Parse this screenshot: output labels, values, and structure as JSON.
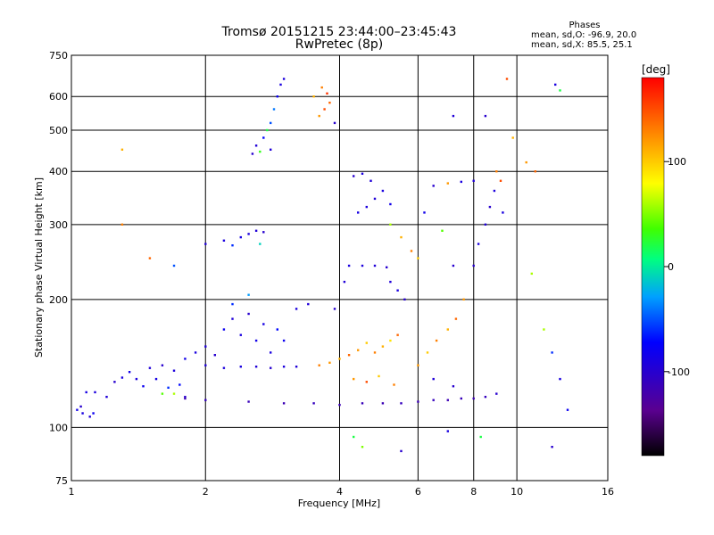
{
  "chart_data": {
    "type": "scatter",
    "title": "Tromsø 20151215 23:44:00–23:45:43",
    "subtitle": "RwPretec (8p)",
    "stats": {
      "heading": "Phases",
      "line1": "mean, sd,O: -96.9, 20.0",
      "line2": "mean, sd,X: 85.5, 25.1"
    },
    "xlabel": "Frequency [MHz]",
    "ylabel": "Stationary phase Virtual Height [km]",
    "x_scale": "log",
    "y_scale": "log",
    "xlim": [
      1,
      16
    ],
    "ylim": [
      75,
      750
    ],
    "x_ticks": [
      1,
      2,
      4,
      6,
      8,
      10,
      16
    ],
    "x_tick_labels": [
      "1",
      "2",
      "4",
      "6",
      "8",
      "10",
      "16"
    ],
    "x_grid": [
      2,
      4,
      6,
      8,
      10
    ],
    "y_ticks": [
      75,
      100,
      200,
      300,
      400,
      500,
      600,
      750
    ],
    "y_tick_labels": [
      "75",
      "100",
      "200",
      "300",
      "400",
      "500",
      "600",
      "750"
    ],
    "y_grid": [
      100,
      200,
      300,
      400,
      500,
      600
    ],
    "grid": true,
    "colorbar": {
      "label": "[deg]",
      "range": [
        -180,
        180
      ],
      "ticks": [
        100,
        0,
        -100
      ],
      "tick_labels": [
        "100",
        "0",
        "-100"
      ],
      "colormap": "black-purple-blue-cyan-green-yellow-orange-red"
    },
    "series": [
      {
        "points": [
          [
            1.03,
            110,
            -85
          ],
          [
            1.06,
            108,
            -90
          ],
          [
            1.1,
            106,
            -95
          ],
          [
            1.12,
            108,
            -80
          ],
          [
            1.05,
            112,
            -100
          ],
          [
            1.08,
            121,
            -88
          ],
          [
            1.13,
            121,
            -92
          ],
          [
            1.2,
            118,
            -95
          ],
          [
            1.25,
            128,
            -100
          ],
          [
            1.3,
            131,
            -90
          ],
          [
            1.35,
            135,
            -85
          ],
          [
            1.4,
            130,
            -92
          ],
          [
            1.45,
            125,
            -80
          ],
          [
            1.5,
            138,
            -95
          ],
          [
            1.55,
            130,
            -88
          ],
          [
            1.6,
            140,
            -100
          ],
          [
            1.7,
            136,
            -92
          ],
          [
            1.8,
            145,
            -85
          ],
          [
            1.9,
            150,
            -90
          ],
          [
            2.0,
            155,
            -95
          ],
          [
            1.65,
            124,
            -60
          ],
          [
            1.75,
            126,
            -70
          ],
          [
            1.6,
            120,
            40
          ],
          [
            1.7,
            120,
            60
          ],
          [
            1.8,
            118,
            -100
          ],
          [
            2.2,
            170,
            -80
          ],
          [
            2.3,
            180,
            -95
          ],
          [
            2.4,
            165,
            -90
          ],
          [
            2.5,
            185,
            -100
          ],
          [
            2.6,
            160,
            -85
          ],
          [
            2.7,
            175,
            -88
          ],
          [
            2.8,
            150,
            -90
          ],
          [
            2.1,
            148,
            -100
          ],
          [
            2.9,
            170,
            -70
          ],
          [
            3.0,
            160,
            -80
          ],
          [
            3.2,
            190,
            -92
          ],
          [
            3.4,
            195,
            -95
          ],
          [
            2.3,
            195,
            -60
          ],
          [
            2.5,
            205,
            -30
          ],
          [
            2.0,
            140,
            -95
          ],
          [
            2.2,
            138,
            -92
          ],
          [
            2.4,
            139,
            -90
          ],
          [
            2.6,
            139,
            -95
          ],
          [
            2.8,
            138,
            -100
          ],
          [
            3.0,
            139,
            -92
          ],
          [
            3.2,
            139,
            -95
          ],
          [
            2.0,
            270,
            -95
          ],
          [
            2.2,
            275,
            -90
          ],
          [
            2.4,
            280,
            -88
          ],
          [
            2.5,
            285,
            -92
          ],
          [
            2.6,
            290,
            -95
          ],
          [
            2.7,
            288,
            -100
          ],
          [
            2.3,
            268,
            -60
          ],
          [
            2.65,
            270,
            -10
          ],
          [
            2.55,
            440,
            -100
          ],
          [
            2.6,
            460,
            -95
          ],
          [
            2.7,
            480,
            -70
          ],
          [
            2.8,
            520,
            -50
          ],
          [
            2.85,
            560,
            -40
          ],
          [
            2.75,
            500,
            20
          ],
          [
            2.9,
            600,
            -80
          ],
          [
            2.95,
            640,
            -90
          ],
          [
            3.0,
            660,
            -92
          ],
          [
            2.65,
            445,
            30
          ],
          [
            2.8,
            450,
            -95
          ],
          [
            3.6,
            540,
            120
          ],
          [
            3.7,
            560,
            150
          ],
          [
            3.8,
            580,
            140
          ],
          [
            3.5,
            600,
            110
          ],
          [
            3.9,
            520,
            -100
          ],
          [
            3.65,
            630,
            130
          ],
          [
            3.75,
            610,
            160
          ],
          [
            1.8,
            117,
            -115
          ],
          [
            2.0,
            116,
            -110
          ],
          [
            2.5,
            115,
            -112
          ],
          [
            3.0,
            114,
            -115
          ],
          [
            3.5,
            114,
            -110
          ],
          [
            4.0,
            113,
            -115
          ],
          [
            4.5,
            114,
            -112
          ],
          [
            5.0,
            114,
            -115
          ],
          [
            5.5,
            114,
            -110
          ],
          [
            6.0,
            115,
            -115
          ],
          [
            6.5,
            116,
            -110
          ],
          [
            7.0,
            116,
            -115
          ],
          [
            7.5,
            117,
            -112
          ],
          [
            8.0,
            117,
            -115
          ],
          [
            8.5,
            118,
            -110
          ],
          [
            9.0,
            120,
            -100
          ],
          [
            3.6,
            140,
            130
          ],
          [
            3.8,
            142,
            120
          ],
          [
            4.0,
            145,
            110
          ],
          [
            4.2,
            148,
            140
          ],
          [
            4.4,
            152,
            120
          ],
          [
            4.6,
            158,
            100
          ],
          [
            4.8,
            150,
            130
          ],
          [
            5.0,
            155,
            110
          ],
          [
            5.2,
            160,
            90
          ],
          [
            5.4,
            165,
            140
          ],
          [
            4.3,
            130,
            120
          ],
          [
            4.6,
            128,
            150
          ],
          [
            4.9,
            132,
            100
          ],
          [
            5.3,
            126,
            130
          ],
          [
            3.9,
            190,
            -100
          ],
          [
            4.1,
            220,
            -95
          ],
          [
            4.2,
            240,
            -90
          ],
          [
            4.5,
            240,
            -92
          ],
          [
            4.8,
            240,
            -95
          ],
          [
            5.1,
            238,
            -100
          ],
          [
            4.4,
            320,
            -88
          ],
          [
            4.6,
            330,
            -92
          ],
          [
            4.8,
            345,
            -95
          ],
          [
            5.0,
            360,
            -90
          ],
          [
            5.2,
            335,
            -85
          ],
          [
            4.3,
            390,
            -100
          ],
          [
            4.5,
            395,
            -92
          ],
          [
            4.7,
            380,
            -95
          ],
          [
            5.2,
            300,
            60
          ],
          [
            5.5,
            280,
            110
          ],
          [
            5.8,
            260,
            130
          ],
          [
            6.0,
            250,
            100
          ],
          [
            5.6,
            200,
            -100
          ],
          [
            5.4,
            210,
            -90
          ],
          [
            5.2,
            220,
            -95
          ],
          [
            6.0,
            140,
            120
          ],
          [
            6.3,
            150,
            100
          ],
          [
            6.6,
            160,
            130
          ],
          [
            7.0,
            170,
            110
          ],
          [
            7.3,
            180,
            140
          ],
          [
            7.6,
            200,
            120
          ],
          [
            8.0,
            240,
            -100
          ],
          [
            8.2,
            270,
            -90
          ],
          [
            8.5,
            300,
            -95
          ],
          [
            8.7,
            330,
            -100
          ],
          [
            8.9,
            360,
            -92
          ],
          [
            9.0,
            400,
            130
          ],
          [
            9.2,
            380,
            150
          ],
          [
            9.3,
            320,
            -90
          ],
          [
            6.5,
            370,
            -100
          ],
          [
            7.0,
            375,
            120
          ],
          [
            7.5,
            378,
            -90
          ],
          [
            8.0,
            380,
            -95
          ],
          [
            6.2,
            320,
            -85
          ],
          [
            6.8,
            290,
            40
          ],
          [
            7.2,
            240,
            -100
          ],
          [
            8.5,
            540,
            -100
          ],
          [
            7.2,
            540,
            -95
          ],
          [
            10.5,
            420,
            120
          ],
          [
            11.0,
            400,
            140
          ],
          [
            12.5,
            620,
            20
          ],
          [
            12.2,
            640,
            -90
          ],
          [
            11.5,
            170,
            60
          ],
          [
            12.0,
            150,
            -60
          ],
          [
            12.5,
            130,
            -90
          ],
          [
            13.0,
            110,
            -80
          ],
          [
            12.0,
            90,
            -100
          ],
          [
            10.8,
            230,
            60
          ],
          [
            9.8,
            480,
            110
          ],
          [
            9.5,
            660,
            150
          ],
          [
            1.3,
            300,
            130
          ],
          [
            1.3,
            450,
            110
          ],
          [
            1.5,
            250,
            140
          ],
          [
            1.7,
            240,
            -50
          ],
          [
            4.5,
            90,
            50
          ],
          [
            4.3,
            95,
            20
          ],
          [
            5.5,
            88,
            -100
          ],
          [
            7.0,
            98,
            -90
          ],
          [
            8.3,
            95,
            20
          ],
          [
            6.5,
            130,
            -95
          ],
          [
            7.2,
            125,
            -100
          ]
        ]
      }
    ]
  }
}
